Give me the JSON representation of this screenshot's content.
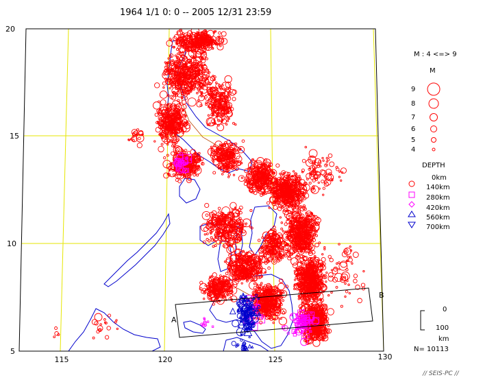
{
  "header": {
    "title": "1964 1/1   0: 0 -- 2005 12/31 23:59"
  },
  "map": {
    "lat_labels": [
      "20",
      "15",
      "10",
      "5"
    ],
    "lon_labels": [
      "115",
      "120",
      "125",
      "130"
    ],
    "section_labels": {
      "a": "A",
      "b": "B"
    },
    "colors": {
      "grid": "#e6e600",
      "frame": "#000000",
      "coast": "#0000cc",
      "border": "#bb4400",
      "shallow": "#ff0000",
      "intermediate": "#ff00ff",
      "deep": "#0000cc"
    }
  },
  "legend": {
    "range": "M : 4 <=> 9",
    "m_header": "M",
    "magnitudes": [
      "9",
      "8",
      "7",
      "6",
      "5",
      "4"
    ],
    "depth_header": "DEPTH",
    "depths": [
      "0km",
      "140km",
      "280km",
      "420km",
      "560km",
      "700km"
    ],
    "depth_symbols": [
      "circle-icon",
      "square-icon",
      "diamond-icon",
      "triangle-up-icon",
      "triangle-down-icon"
    ],
    "scale": {
      "top": "0",
      "mid": "100",
      "unit": "km"
    },
    "count": "N= 10113"
  },
  "footer": {
    "credit": "// SEIS-PC //"
  }
}
